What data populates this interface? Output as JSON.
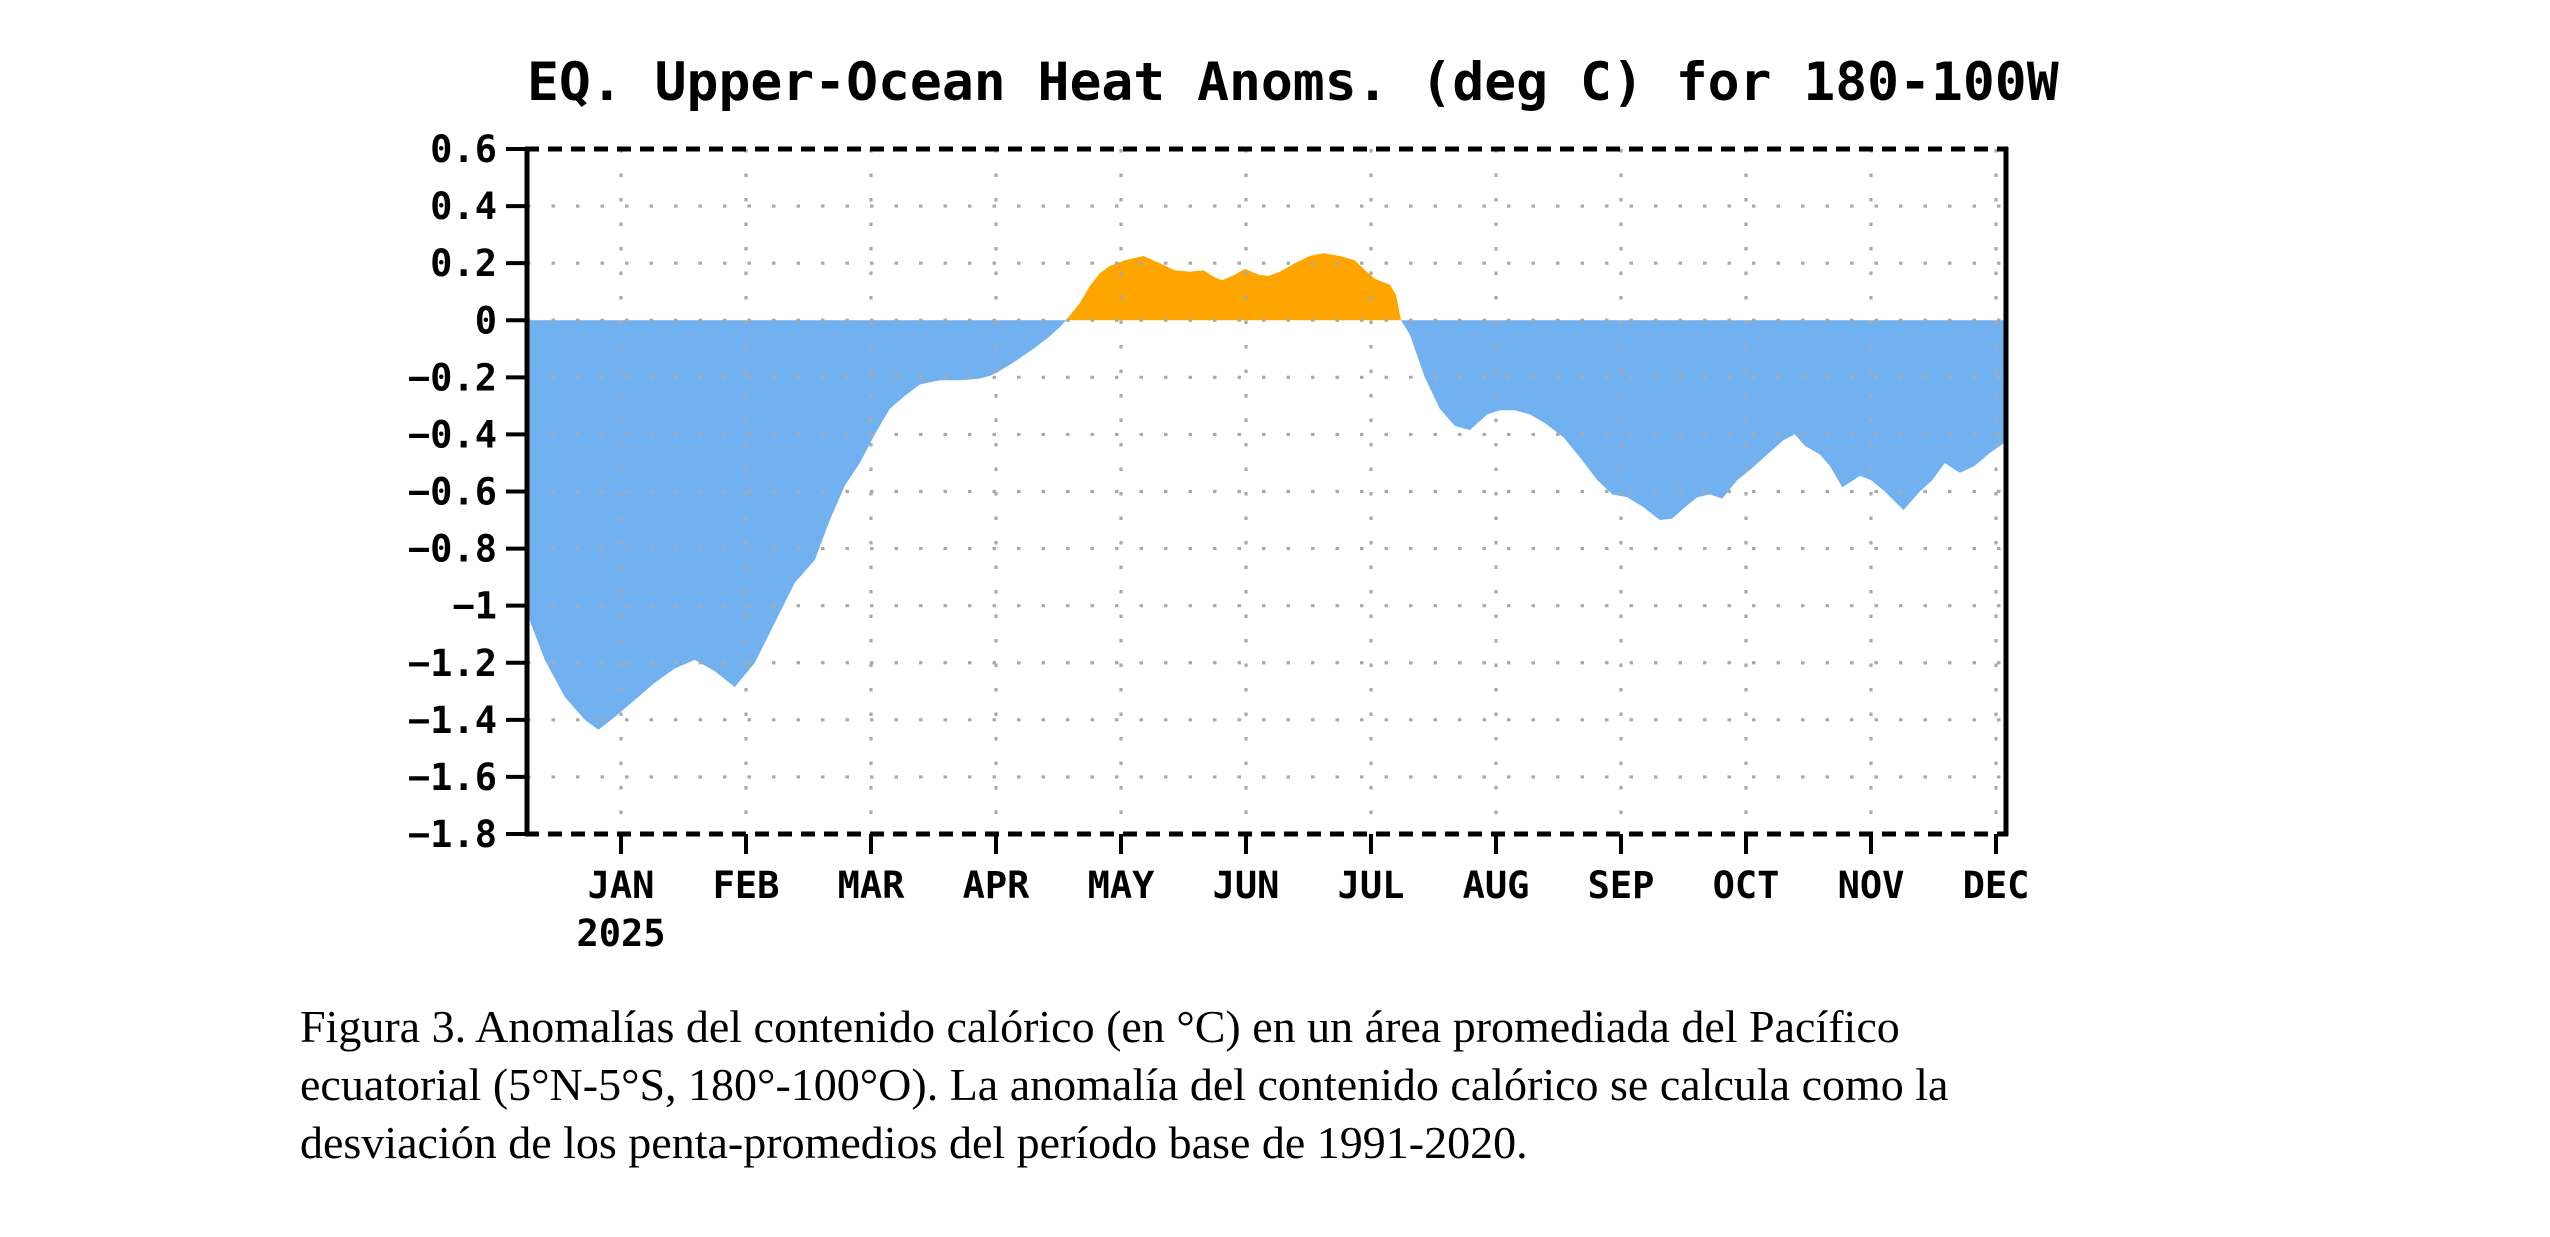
{
  "title": "EQ. Upper-Ocean Heat Anoms. (deg C) for 180-100W",
  "colors": {
    "positive_fill": "#FFA500",
    "negative_fill": "#72B1F0",
    "grid": "#A9A9A9",
    "axis": "#000000",
    "background": "#FFFFFF"
  },
  "chart_data": {
    "type": "area",
    "title": "EQ. Upper-Ocean Heat Anoms. (deg C) for 180-100W",
    "x_axis": {
      "tick_labels": [
        "JAN",
        "FEB",
        "MAR",
        "APR",
        "MAY",
        "JUN",
        "JUL",
        "AUG",
        "SEP",
        "OCT",
        "NOV",
        "DEC"
      ],
      "year_label": "2025",
      "unit": "months, 0 = JAN 2025 tick",
      "range_months": [
        -0.75,
        11.08
      ],
      "grid": "dotted"
    },
    "y_axis": {
      "tick_labels": [
        "0.6",
        "0.4",
        "0.2",
        "0",
        "−0.2",
        "−0.4",
        "−0.6",
        "−0.8",
        "−1",
        "−1.2",
        "−1.4",
        "−1.6",
        "−1.8"
      ],
      "tick_values": [
        0.6,
        0.4,
        0.2,
        0.0,
        -0.2,
        -0.4,
        -0.6,
        -0.8,
        -1.0,
        -1.2,
        -1.4,
        -1.6,
        -1.8
      ],
      "min": -1.8,
      "max": 0.6,
      "tick_step": 0.2,
      "unit": "deg C",
      "grid": "dotted"
    },
    "series": [
      {
        "name": "upper-ocean-heat-content-anomaly",
        "fill_positive": "#FFA500",
        "fill_negative": "#72B1F0",
        "points": [
          [
            -0.75,
            -1.03
          ],
          [
            -0.61,
            -1.19
          ],
          [
            -0.45,
            -1.32
          ],
          [
            -0.29,
            -1.4
          ],
          [
            -0.18,
            -1.435
          ],
          [
            -0.05,
            -1.39
          ],
          [
            0.11,
            -1.33
          ],
          [
            0.27,
            -1.27
          ],
          [
            0.43,
            -1.22
          ],
          [
            0.59,
            -1.19
          ],
          [
            0.75,
            -1.23
          ],
          [
            0.91,
            -1.285
          ],
          [
            1.07,
            -1.2
          ],
          [
            1.23,
            -1.06
          ],
          [
            1.39,
            -0.92
          ],
          [
            1.55,
            -0.84
          ],
          [
            1.67,
            -0.7
          ],
          [
            1.79,
            -0.58
          ],
          [
            1.91,
            -0.5
          ],
          [
            2.03,
            -0.4
          ],
          [
            2.15,
            -0.31
          ],
          [
            2.27,
            -0.265
          ],
          [
            2.39,
            -0.225
          ],
          [
            2.55,
            -0.21
          ],
          [
            2.72,
            -0.21
          ],
          [
            2.86,
            -0.205
          ],
          [
            2.95,
            -0.195
          ],
          [
            3.0,
            -0.185
          ],
          [
            3.15,
            -0.145
          ],
          [
            3.3,
            -0.1
          ],
          [
            3.42,
            -0.06
          ],
          [
            3.52,
            -0.02
          ],
          [
            3.56,
            0.0
          ],
          [
            3.67,
            0.06
          ],
          [
            3.75,
            0.12
          ],
          [
            3.83,
            0.165
          ],
          [
            3.91,
            0.19
          ],
          [
            4.03,
            0.21
          ],
          [
            4.18,
            0.225
          ],
          [
            4.31,
            0.2
          ],
          [
            4.43,
            0.175
          ],
          [
            4.55,
            0.17
          ],
          [
            4.66,
            0.175
          ],
          [
            4.75,
            0.15
          ],
          [
            4.81,
            0.14
          ],
          [
            4.91,
            0.16
          ],
          [
            4.99,
            0.18
          ],
          [
            5.1,
            0.16
          ],
          [
            5.18,
            0.155
          ],
          [
            5.27,
            0.17
          ],
          [
            5.39,
            0.2
          ],
          [
            5.51,
            0.225
          ],
          [
            5.62,
            0.235
          ],
          [
            5.75,
            0.225
          ],
          [
            5.87,
            0.21
          ],
          [
            5.94,
            0.18
          ],
          [
            6.03,
            0.145
          ],
          [
            6.15,
            0.125
          ],
          [
            6.2,
            0.09
          ],
          [
            6.24,
            0.0
          ],
          [
            6.31,
            -0.05
          ],
          [
            6.43,
            -0.2
          ],
          [
            6.55,
            -0.31
          ],
          [
            6.67,
            -0.37
          ],
          [
            6.79,
            -0.385
          ],
          [
            6.93,
            -0.33
          ],
          [
            7.03,
            -0.315
          ],
          [
            7.15,
            -0.315
          ],
          [
            7.27,
            -0.33
          ],
          [
            7.39,
            -0.36
          ],
          [
            7.54,
            -0.41
          ],
          [
            7.67,
            -0.48
          ],
          [
            7.81,
            -0.56
          ],
          [
            7.93,
            -0.61
          ],
          [
            8.05,
            -0.62
          ],
          [
            8.18,
            -0.655
          ],
          [
            8.31,
            -0.7
          ],
          [
            8.41,
            -0.695
          ],
          [
            8.51,
            -0.655
          ],
          [
            8.61,
            -0.62
          ],
          [
            8.71,
            -0.61
          ],
          [
            8.81,
            -0.625
          ],
          [
            8.93,
            -0.56
          ],
          [
            9.03,
            -0.525
          ],
          [
            9.17,
            -0.47
          ],
          [
            9.3,
            -0.42
          ],
          [
            9.39,
            -0.4
          ],
          [
            9.47,
            -0.44
          ],
          [
            9.59,
            -0.47
          ],
          [
            9.67,
            -0.51
          ],
          [
            9.77,
            -0.585
          ],
          [
            9.86,
            -0.56
          ],
          [
            9.91,
            -0.545
          ],
          [
            10.0,
            -0.56
          ],
          [
            10.11,
            -0.6
          ],
          [
            10.26,
            -0.665
          ],
          [
            10.39,
            -0.6
          ],
          [
            10.49,
            -0.56
          ],
          [
            10.59,
            -0.5
          ],
          [
            10.71,
            -0.535
          ],
          [
            10.83,
            -0.51
          ],
          [
            10.95,
            -0.465
          ],
          [
            11.08,
            -0.425
          ]
        ]
      }
    ]
  },
  "caption": {
    "line1": "Figura 3. Anomalías del contenido calórico (en °C) en un área promediada del Pacífico",
    "line2": "ecuatorial (5°N-5°S, 180°-100°O). La anomalía del contenido calórico se calcula como la",
    "line3": "desviación de los penta-promedios del período base de 1991-2020."
  }
}
